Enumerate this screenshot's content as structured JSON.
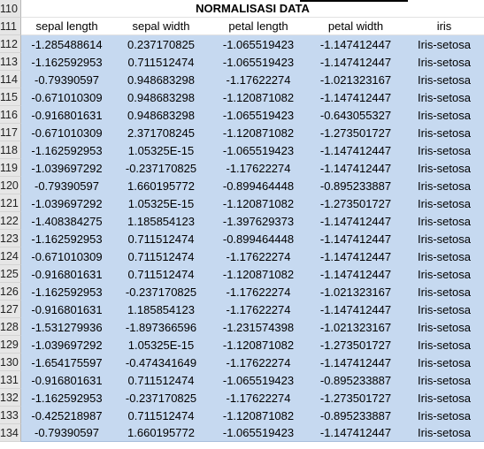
{
  "title": "NORMALISASI DATA",
  "title_row_number": "110",
  "header_row_number": "111",
  "columns": [
    "sepal length",
    "sepal width",
    "petal length",
    "petal width",
    "iris"
  ],
  "rows": [
    {
      "n": "112",
      "v": [
        "-1.285488614",
        "0.237170825",
        "-1.065519423",
        "-1.147412447",
        "Iris-setosa"
      ]
    },
    {
      "n": "113",
      "v": [
        "-1.162592953",
        "0.711512474",
        "-1.065519423",
        "-1.147412447",
        "Iris-setosa"
      ]
    },
    {
      "n": "114",
      "v": [
        "-0.79390597",
        "0.948683298",
        "-1.17622274",
        "-1.021323167",
        "Iris-setosa"
      ]
    },
    {
      "n": "115",
      "v": [
        "-0.671010309",
        "0.948683298",
        "-1.120871082",
        "-1.147412447",
        "Iris-setosa"
      ]
    },
    {
      "n": "116",
      "v": [
        "-0.916801631",
        "0.948683298",
        "-1.065519423",
        "-0.643055327",
        "Iris-setosa"
      ]
    },
    {
      "n": "117",
      "v": [
        "-0.671010309",
        "2.371708245",
        "-1.120871082",
        "-1.273501727",
        "Iris-setosa"
      ]
    },
    {
      "n": "118",
      "v": [
        "-1.162592953",
        "1.05325E-15",
        "-1.065519423",
        "-1.147412447",
        "Iris-setosa"
      ]
    },
    {
      "n": "119",
      "v": [
        "-1.039697292",
        "-0.237170825",
        "-1.17622274",
        "-1.147412447",
        "Iris-setosa"
      ]
    },
    {
      "n": "120",
      "v": [
        "-0.79390597",
        "1.660195772",
        "-0.899464448",
        "-0.895233887",
        "Iris-setosa"
      ]
    },
    {
      "n": "121",
      "v": [
        "-1.039697292",
        "1.05325E-15",
        "-1.120871082",
        "-1.273501727",
        "Iris-setosa"
      ]
    },
    {
      "n": "122",
      "v": [
        "-1.408384275",
        "1.185854123",
        "-1.397629373",
        "-1.147412447",
        "Iris-setosa"
      ]
    },
    {
      "n": "123",
      "v": [
        "-1.162592953",
        "0.711512474",
        "-0.899464448",
        "-1.147412447",
        "Iris-setosa"
      ]
    },
    {
      "n": "124",
      "v": [
        "-0.671010309",
        "0.711512474",
        "-1.17622274",
        "-1.147412447",
        "Iris-setosa"
      ]
    },
    {
      "n": "125",
      "v": [
        "-0.916801631",
        "0.711512474",
        "-1.120871082",
        "-1.147412447",
        "Iris-setosa"
      ]
    },
    {
      "n": "126",
      "v": [
        "-1.162592953",
        "-0.237170825",
        "-1.17622274",
        "-1.021323167",
        "Iris-setosa"
      ]
    },
    {
      "n": "127",
      "v": [
        "-0.916801631",
        "1.185854123",
        "-1.17622274",
        "-1.147412447",
        "Iris-setosa"
      ]
    },
    {
      "n": "128",
      "v": [
        "-1.531279936",
        "-1.897366596",
        "-1.231574398",
        "-1.021323167",
        "Iris-setosa"
      ]
    },
    {
      "n": "129",
      "v": [
        "-1.039697292",
        "1.05325E-15",
        "-1.120871082",
        "-1.273501727",
        "Iris-setosa"
      ]
    },
    {
      "n": "130",
      "v": [
        "-1.654175597",
        "-0.474341649",
        "-1.17622274",
        "-1.147412447",
        "Iris-setosa"
      ]
    },
    {
      "n": "131",
      "v": [
        "-0.916801631",
        "0.711512474",
        "-1.065519423",
        "-0.895233887",
        "Iris-setosa"
      ]
    },
    {
      "n": "132",
      "v": [
        "-1.162592953",
        "-0.237170825",
        "-1.17622274",
        "-1.273501727",
        "Iris-setosa"
      ]
    },
    {
      "n": "133",
      "v": [
        "-0.425218987",
        "0.711512474",
        "-1.120871082",
        "-0.895233887",
        "Iris-setosa"
      ]
    },
    {
      "n": "134",
      "v": [
        "-0.79390597",
        "1.660195772",
        "-1.065519423",
        "-1.147412447",
        "Iris-setosa"
      ]
    }
  ]
}
